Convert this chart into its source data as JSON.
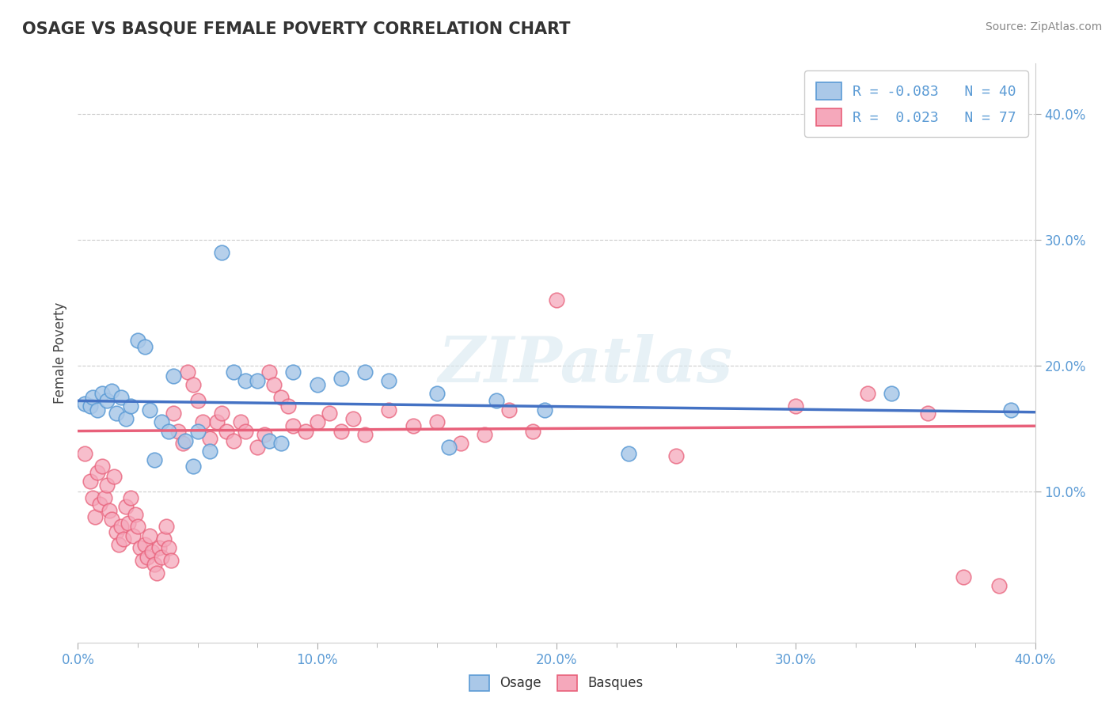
{
  "title": "OSAGE VS BASQUE FEMALE POVERTY CORRELATION CHART",
  "source": "Source: ZipAtlas.com",
  "ylabel": "Female Poverty",
  "xlim": [
    0.0,
    0.4
  ],
  "ylim": [
    -0.02,
    0.44
  ],
  "xtick_labels": [
    "0.0%",
    "",
    "",
    "",
    "",
    "10.0%",
    "",
    "",
    "",
    "",
    "20.0%",
    "",
    "",
    "",
    "",
    "30.0%",
    "",
    "",
    "",
    "",
    "40.0%"
  ],
  "xtick_values": [
    0.0,
    0.02,
    0.04,
    0.06,
    0.08,
    0.1,
    0.12,
    0.14,
    0.16,
    0.18,
    0.2,
    0.22,
    0.24,
    0.26,
    0.28,
    0.3,
    0.32,
    0.34,
    0.36,
    0.38,
    0.4
  ],
  "ytick_labels": [
    "10.0%",
    "20.0%",
    "30.0%",
    "40.0%"
  ],
  "ytick_values": [
    0.1,
    0.2,
    0.3,
    0.4
  ],
  "osage_color": "#aac8e8",
  "basques_color": "#f5a8bb",
  "osage_edge_color": "#5b9bd5",
  "basques_edge_color": "#e8607a",
  "osage_line_color": "#4472c4",
  "basques_line_color": "#e8607a",
  "r_osage": -0.083,
  "n_osage": 40,
  "r_basques": 0.023,
  "n_basques": 77,
  "watermark": "ZIPatlas",
  "osage_points": [
    [
      0.003,
      0.17
    ],
    [
      0.005,
      0.168
    ],
    [
      0.006,
      0.175
    ],
    [
      0.008,
      0.165
    ],
    [
      0.01,
      0.178
    ],
    [
      0.012,
      0.172
    ],
    [
      0.014,
      0.18
    ],
    [
      0.016,
      0.162
    ],
    [
      0.018,
      0.175
    ],
    [
      0.02,
      0.158
    ],
    [
      0.022,
      0.168
    ],
    [
      0.025,
      0.22
    ],
    [
      0.028,
      0.215
    ],
    [
      0.03,
      0.165
    ],
    [
      0.032,
      0.125
    ],
    [
      0.035,
      0.155
    ],
    [
      0.038,
      0.148
    ],
    [
      0.04,
      0.192
    ],
    [
      0.045,
      0.14
    ],
    [
      0.048,
      0.12
    ],
    [
      0.05,
      0.148
    ],
    [
      0.055,
      0.132
    ],
    [
      0.06,
      0.29
    ],
    [
      0.065,
      0.195
    ],
    [
      0.07,
      0.188
    ],
    [
      0.075,
      0.188
    ],
    [
      0.08,
      0.14
    ],
    [
      0.085,
      0.138
    ],
    [
      0.09,
      0.195
    ],
    [
      0.1,
      0.185
    ],
    [
      0.11,
      0.19
    ],
    [
      0.12,
      0.195
    ],
    [
      0.13,
      0.188
    ],
    [
      0.15,
      0.178
    ],
    [
      0.155,
      0.135
    ],
    [
      0.175,
      0.172
    ],
    [
      0.195,
      0.165
    ],
    [
      0.23,
      0.13
    ],
    [
      0.34,
      0.178
    ],
    [
      0.39,
      0.165
    ]
  ],
  "basques_points": [
    [
      0.003,
      0.13
    ],
    [
      0.005,
      0.108
    ],
    [
      0.006,
      0.095
    ],
    [
      0.007,
      0.08
    ],
    [
      0.008,
      0.115
    ],
    [
      0.009,
      0.09
    ],
    [
      0.01,
      0.12
    ],
    [
      0.011,
      0.095
    ],
    [
      0.012,
      0.105
    ],
    [
      0.013,
      0.085
    ],
    [
      0.014,
      0.078
    ],
    [
      0.015,
      0.112
    ],
    [
      0.016,
      0.068
    ],
    [
      0.017,
      0.058
    ],
    [
      0.018,
      0.072
    ],
    [
      0.019,
      0.062
    ],
    [
      0.02,
      0.088
    ],
    [
      0.021,
      0.075
    ],
    [
      0.022,
      0.095
    ],
    [
      0.023,
      0.065
    ],
    [
      0.024,
      0.082
    ],
    [
      0.025,
      0.072
    ],
    [
      0.026,
      0.055
    ],
    [
      0.027,
      0.045
    ],
    [
      0.028,
      0.058
    ],
    [
      0.029,
      0.048
    ],
    [
      0.03,
      0.065
    ],
    [
      0.031,
      0.052
    ],
    [
      0.032,
      0.042
    ],
    [
      0.033,
      0.035
    ],
    [
      0.034,
      0.055
    ],
    [
      0.035,
      0.048
    ],
    [
      0.036,
      0.062
    ],
    [
      0.037,
      0.072
    ],
    [
      0.038,
      0.055
    ],
    [
      0.039,
      0.045
    ],
    [
      0.04,
      0.162
    ],
    [
      0.042,
      0.148
    ],
    [
      0.044,
      0.138
    ],
    [
      0.046,
      0.195
    ],
    [
      0.048,
      0.185
    ],
    [
      0.05,
      0.172
    ],
    [
      0.052,
      0.155
    ],
    [
      0.055,
      0.142
    ],
    [
      0.058,
      0.155
    ],
    [
      0.06,
      0.162
    ],
    [
      0.062,
      0.148
    ],
    [
      0.065,
      0.14
    ],
    [
      0.068,
      0.155
    ],
    [
      0.07,
      0.148
    ],
    [
      0.075,
      0.135
    ],
    [
      0.078,
      0.145
    ],
    [
      0.08,
      0.195
    ],
    [
      0.082,
      0.185
    ],
    [
      0.085,
      0.175
    ],
    [
      0.088,
      0.168
    ],
    [
      0.09,
      0.152
    ],
    [
      0.095,
      0.148
    ],
    [
      0.1,
      0.155
    ],
    [
      0.105,
      0.162
    ],
    [
      0.11,
      0.148
    ],
    [
      0.115,
      0.158
    ],
    [
      0.12,
      0.145
    ],
    [
      0.13,
      0.165
    ],
    [
      0.14,
      0.152
    ],
    [
      0.15,
      0.155
    ],
    [
      0.16,
      0.138
    ],
    [
      0.17,
      0.145
    ],
    [
      0.18,
      0.165
    ],
    [
      0.19,
      0.148
    ],
    [
      0.2,
      0.252
    ],
    [
      0.25,
      0.128
    ],
    [
      0.3,
      0.168
    ],
    [
      0.33,
      0.178
    ],
    [
      0.355,
      0.162
    ],
    [
      0.37,
      0.032
    ],
    [
      0.385,
      0.025
    ]
  ]
}
